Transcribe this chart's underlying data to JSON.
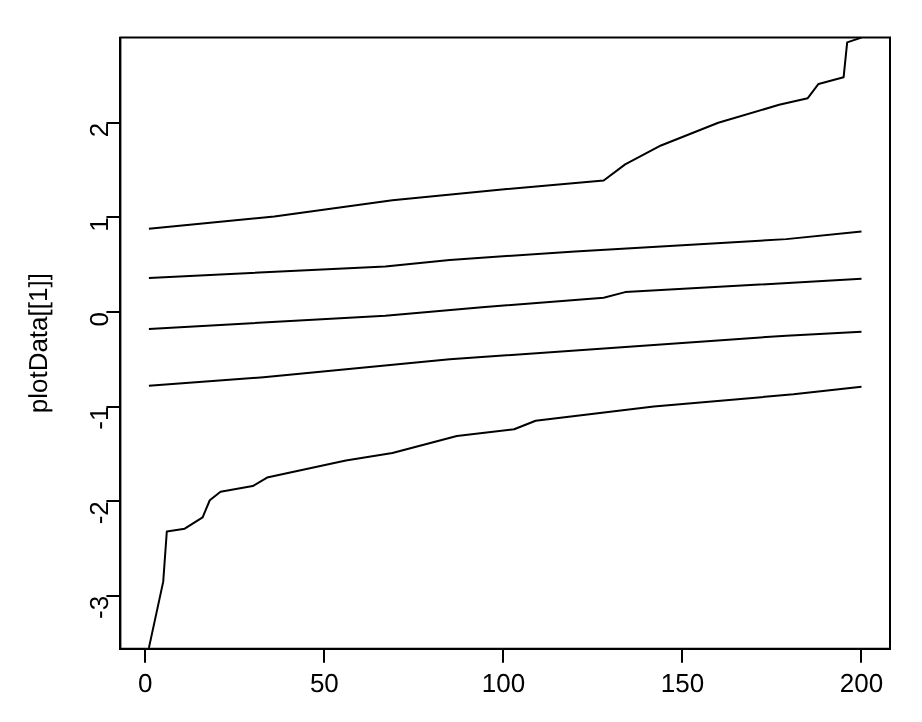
{
  "chart_data": {
    "type": "line",
    "ylabel": "plotData[[1]]",
    "xlim": [
      -6.96,
      207.96
    ],
    "ylim": [
      -3.56,
      2.9
    ],
    "xticks": [
      0,
      50,
      100,
      150,
      200
    ],
    "yticks": [
      -3,
      -2,
      -1,
      0,
      1,
      2
    ],
    "grid": false,
    "legend": false,
    "marker": "none",
    "line_style": "solid",
    "series": [
      {
        "color": "#000000",
        "x": [
          1,
          36,
          69,
          101,
          128,
          134,
          144,
          160,
          177,
          185,
          188,
          195,
          196,
          200
        ],
        "values": [
          0.88,
          1.01,
          1.18,
          1.3,
          1.39,
          1.56,
          1.76,
          2.0,
          2.19,
          2.26,
          2.41,
          2.48,
          2.85,
          2.9
        ]
      },
      {
        "color": "#000000",
        "x": [
          1,
          67,
          85,
          120,
          179,
          200
        ],
        "values": [
          0.36,
          0.48,
          0.55,
          0.64,
          0.77,
          0.85
        ]
      },
      {
        "color": "#000000",
        "x": [
          1,
          67,
          94,
          128,
          134,
          200
        ],
        "values": [
          -0.18,
          -0.04,
          0.05,
          0.15,
          0.21,
          0.35
        ]
      },
      {
        "color": "#000000",
        "x": [
          1,
          33,
          85,
          179,
          200
        ],
        "values": [
          -0.78,
          -0.69,
          -0.5,
          -0.25,
          -0.21
        ]
      },
      {
        "color": "#000000",
        "x": [
          1,
          5,
          6,
          11,
          16,
          18,
          21,
          30,
          34,
          56,
          69,
          87,
          103,
          109,
          120,
          142,
          181,
          200
        ],
        "values": [
          -3.55,
          -2.85,
          -2.32,
          -2.29,
          -2.17,
          -1.99,
          -1.9,
          -1.84,
          -1.75,
          -1.57,
          -1.49,
          -1.31,
          -1.24,
          -1.15,
          -1.1,
          -1.0,
          -0.87,
          -0.79
        ]
      }
    ]
  }
}
